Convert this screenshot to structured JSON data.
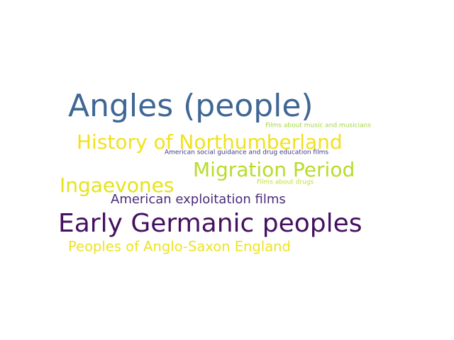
{
  "words": [
    {
      "text": "Angles (people)",
      "color": "#3f6694"
    },
    {
      "text": "Films about music and musicians",
      "color": "#a5d642"
    },
    {
      "text": "History of Northumberland",
      "color": "#f2e11d"
    },
    {
      "text": "American social guidance and drug education films",
      "color": "#3b3b88"
    },
    {
      "text": "Migration Period",
      "color": "#b7dc2a"
    },
    {
      "text": "Ingaevones",
      "color": "#e6e31a"
    },
    {
      "text": "Films about drugs",
      "color": "#bfe03a"
    },
    {
      "text": "American exploitation films",
      "color": "#4a2b7a"
    },
    {
      "text": "Early Germanic peoples",
      "color": "#46105f"
    },
    {
      "text": "Peoples of Anglo-Saxon England",
      "color": "#ede324"
    }
  ]
}
